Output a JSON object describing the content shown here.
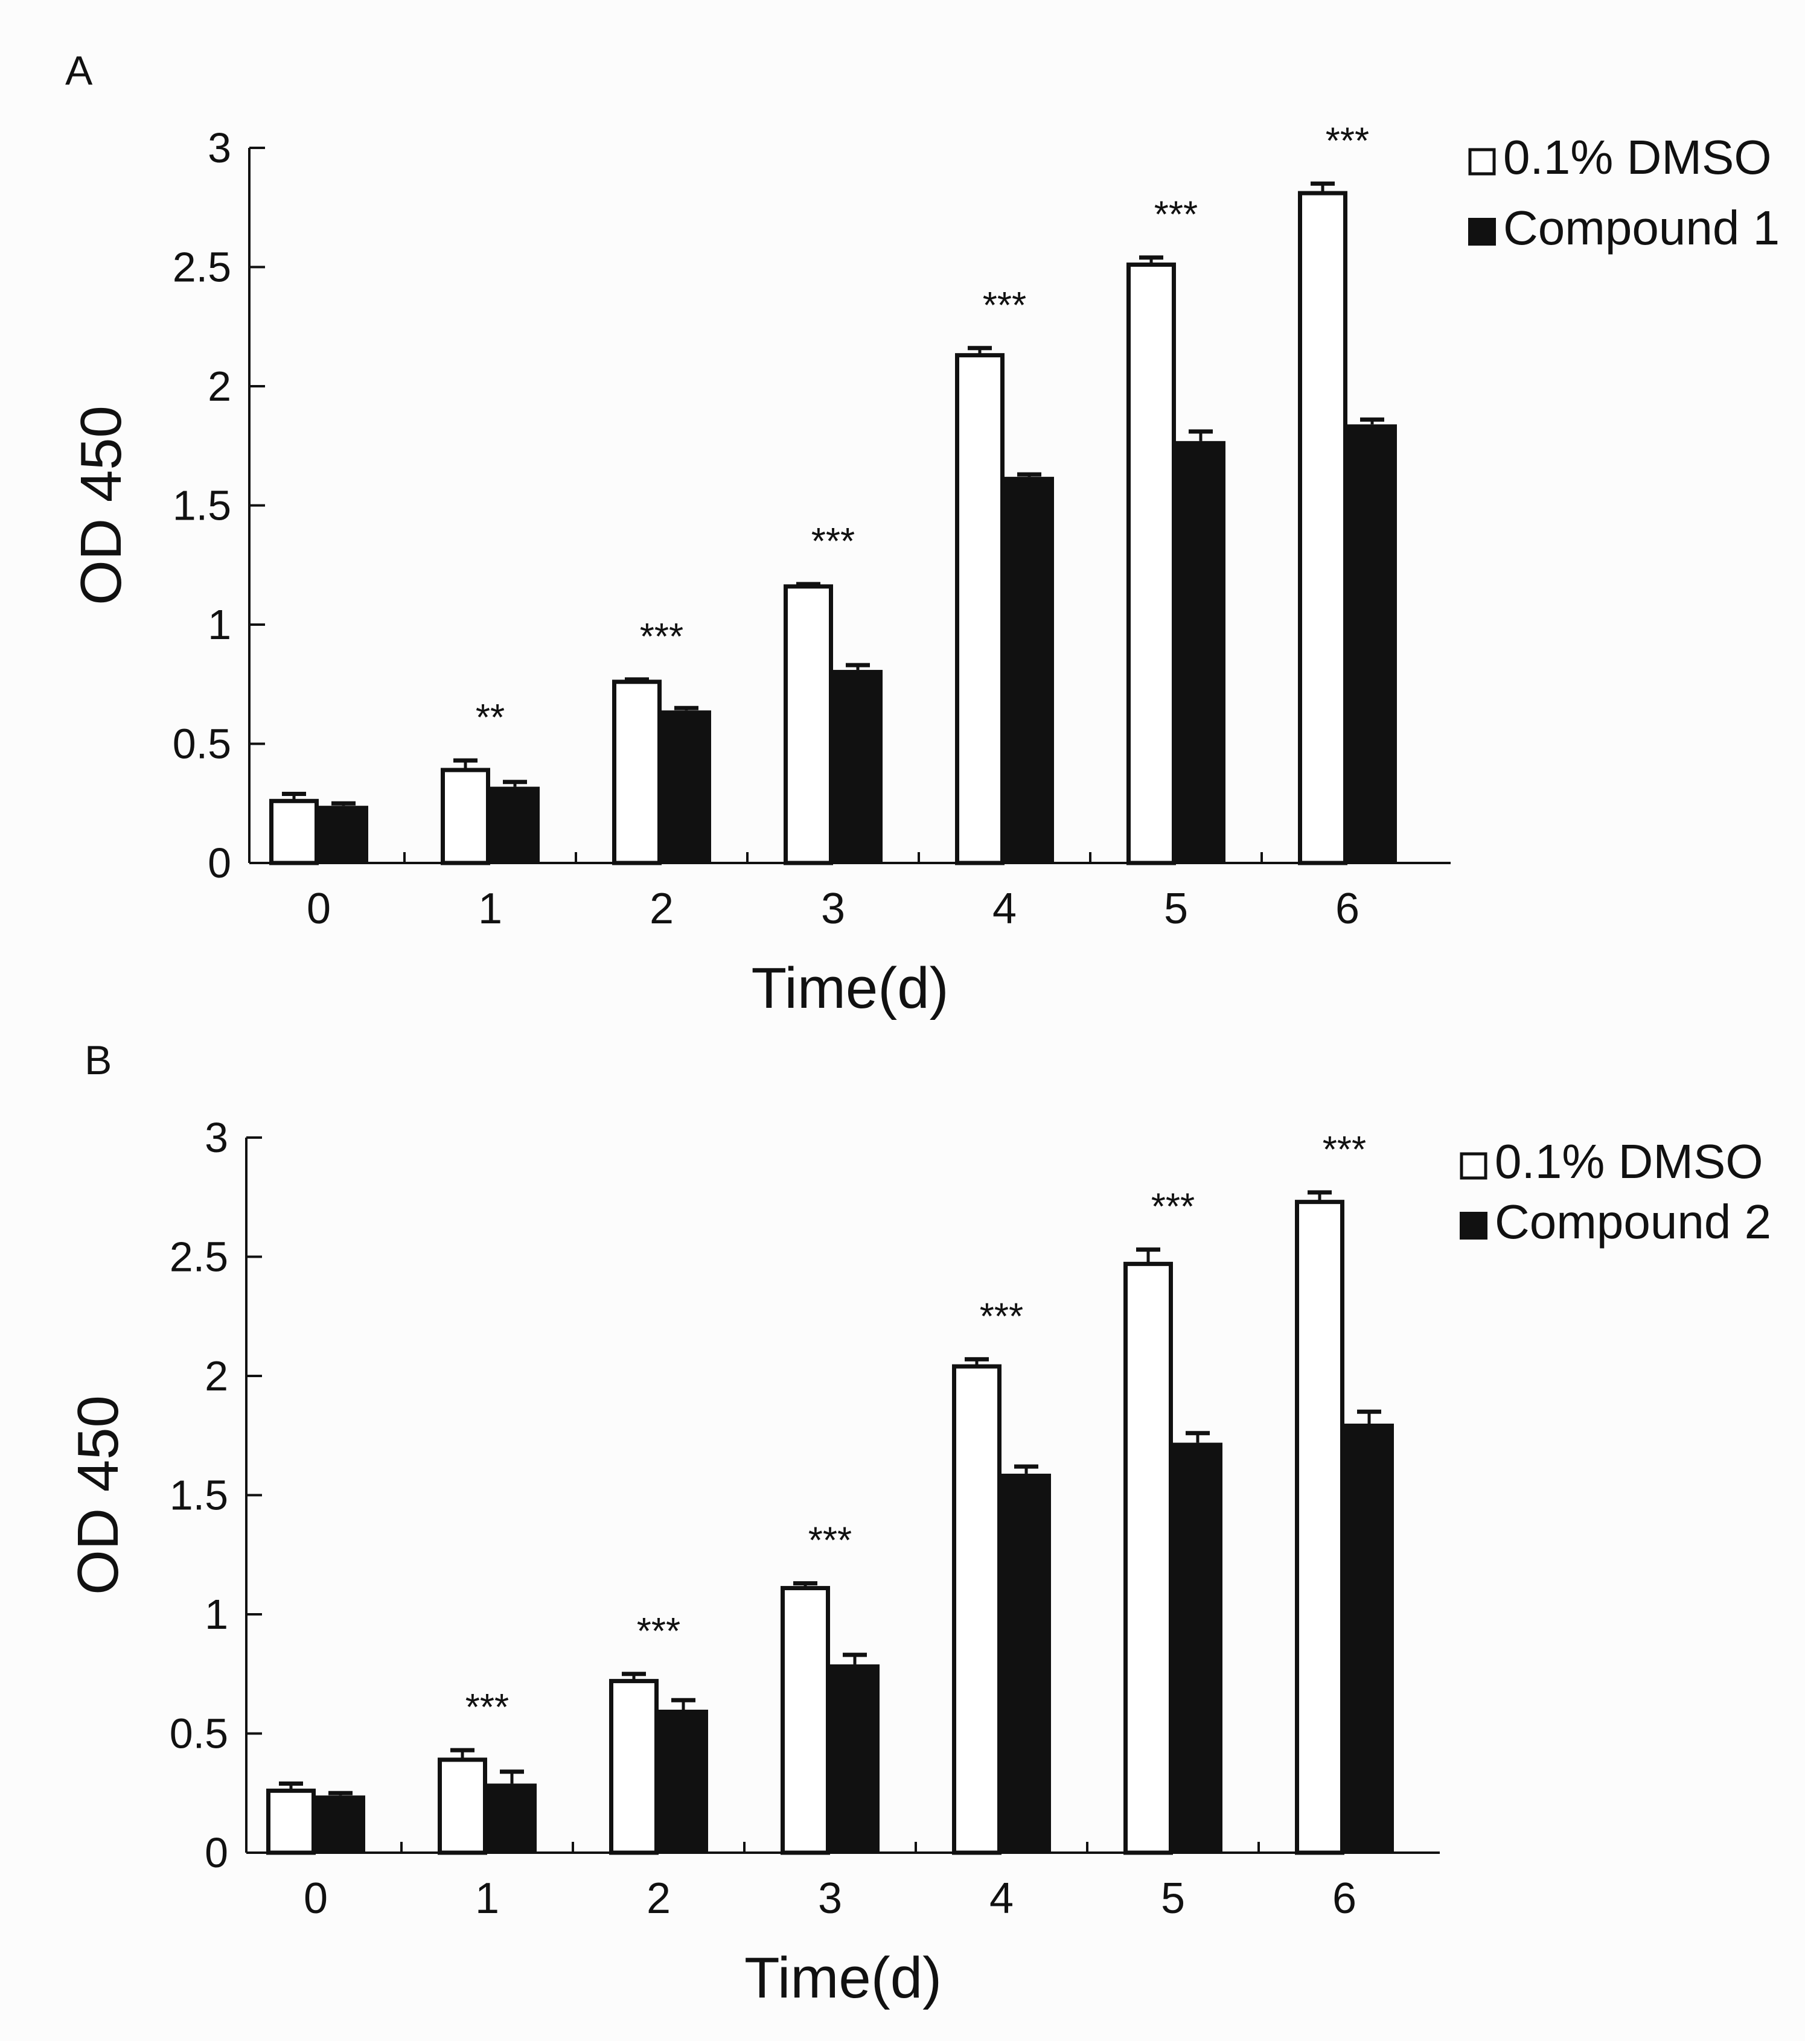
{
  "chart_data": [
    {
      "panel_label": "A",
      "type": "bar",
      "categories": [
        "0",
        "1",
        "2",
        "3",
        "4",
        "5",
        "6"
      ],
      "series": [
        {
          "name": "0.1% DMSO",
          "fill": "#ffffff",
          "values": [
            0.26,
            0.39,
            0.76,
            1.16,
            2.13,
            2.51,
            2.81
          ],
          "errors": [
            0.03,
            0.04,
            0.01,
            0.01,
            0.03,
            0.03,
            0.04
          ]
        },
        {
          "name": "Compound 1",
          "fill": "#111111",
          "values": [
            0.24,
            0.32,
            0.64,
            0.81,
            1.62,
            1.77,
            1.84
          ],
          "errors": [
            0.01,
            0.02,
            0.01,
            0.02,
            0.01,
            0.04,
            0.02
          ]
        }
      ],
      "significance": [
        "",
        "**",
        "***",
        "***",
        "***",
        "***",
        "***"
      ],
      "xlabel": "Time(d)",
      "ylabel": "OD 450",
      "ylim": [
        0,
        3
      ],
      "yticks": [
        "0",
        "0.5",
        "1",
        "1.5",
        "2",
        "2.5",
        "3"
      ],
      "grid": false,
      "legend_position": "top-right"
    },
    {
      "panel_label": "B",
      "type": "bar",
      "categories": [
        "0",
        "1",
        "2",
        "3",
        "4",
        "5",
        "6"
      ],
      "series": [
        {
          "name": "0.1% DMSO",
          "fill": "#ffffff",
          "values": [
            0.26,
            0.39,
            0.72,
            1.11,
            2.04,
            2.47,
            2.73
          ],
          "errors": [
            0.03,
            0.04,
            0.03,
            0.02,
            0.03,
            0.06,
            0.04
          ]
        },
        {
          "name": "Compound 2",
          "fill": "#111111",
          "values": [
            0.24,
            0.29,
            0.6,
            0.79,
            1.59,
            1.72,
            1.8
          ],
          "errors": [
            0.01,
            0.05,
            0.04,
            0.04,
            0.03,
            0.04,
            0.05
          ]
        }
      ],
      "significance": [
        "",
        "***",
        "***",
        "***",
        "***",
        "***",
        "***"
      ],
      "xlabel": "Time(d)",
      "ylabel": "OD 450",
      "ylim": [
        0,
        3
      ],
      "yticks": [
        "0",
        "0.5",
        "1",
        "1.5",
        "2",
        "2.5",
        "3"
      ],
      "grid": false,
      "legend_position": "top-right"
    }
  ]
}
